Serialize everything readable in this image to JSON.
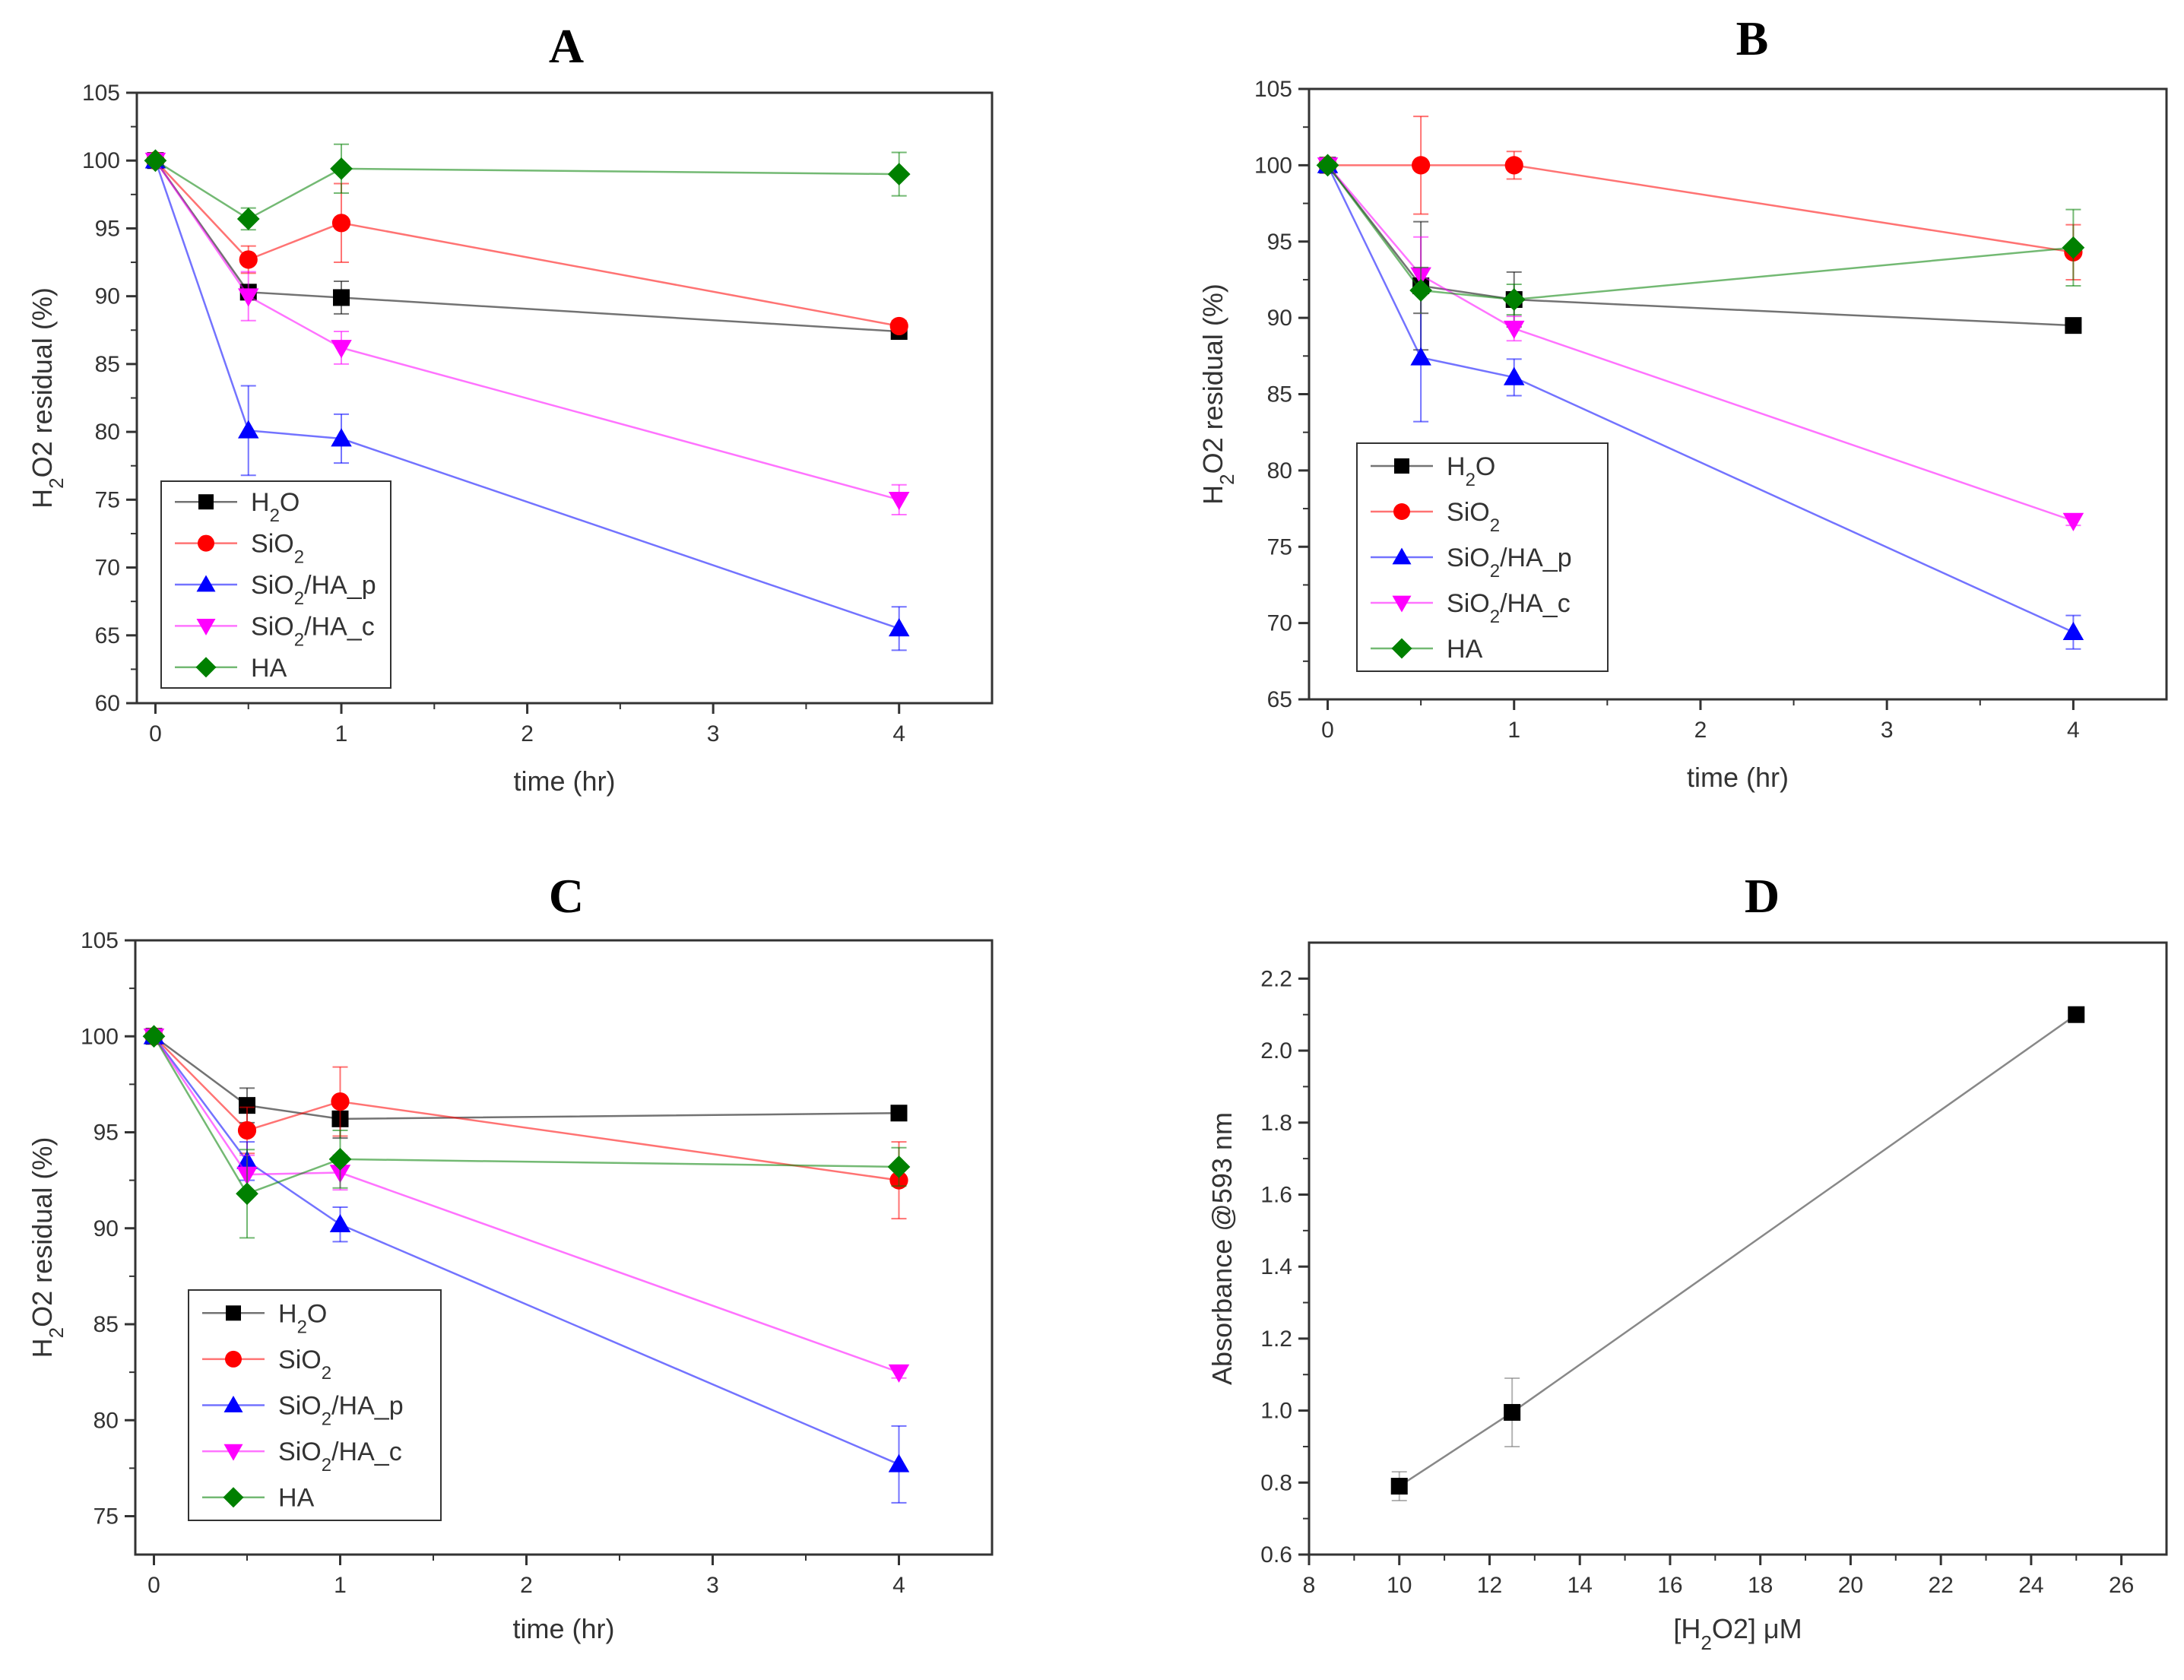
{
  "chart_data": [
    {
      "panel": "A",
      "type": "line",
      "title": "A",
      "xlabel": "time (hr)",
      "ylabel": "H2O2 residual (%)",
      "xlim": [
        -0.1,
        4.5
      ],
      "ylim": [
        60,
        105
      ],
      "xticks": [
        0,
        1,
        2,
        3,
        4
      ],
      "yticks": [
        60,
        65,
        70,
        75,
        80,
        85,
        90,
        95,
        100,
        105
      ],
      "legend_position": "bottom-left",
      "x": [
        0,
        0.5,
        1,
        4
      ],
      "series": [
        {
          "name": "H2O",
          "values": [
            100,
            90.3,
            89.9,
            87.4
          ],
          "errors": [
            0,
            0.5,
            1.2,
            0.3
          ]
        },
        {
          "name": "SiO2",
          "values": [
            100,
            92.7,
            95.4,
            87.8
          ],
          "errors": [
            0,
            1.0,
            2.9,
            0.4
          ]
        },
        {
          "name": "SiO2/HA_p",
          "values": [
            100,
            80.1,
            79.5,
            65.5
          ],
          "errors": [
            0,
            3.3,
            1.8,
            1.6
          ]
        },
        {
          "name": "SiO2/HA_c",
          "values": [
            100,
            90.0,
            86.2,
            75.0
          ],
          "errors": [
            0,
            1.8,
            1.2,
            1.1
          ]
        },
        {
          "name": "HA",
          "values": [
            100,
            95.7,
            99.4,
            99.0
          ],
          "errors": [
            0,
            0.8,
            1.8,
            1.6
          ]
        }
      ]
    },
    {
      "panel": "B",
      "type": "line",
      "title": "B",
      "xlabel": "time (hr)",
      "ylabel": "H2O2 residual (%)",
      "xlim": [
        -0.1,
        4.5
      ],
      "ylim": [
        65,
        105
      ],
      "xticks": [
        0,
        1,
        2,
        3,
        4
      ],
      "yticks": [
        65,
        70,
        75,
        80,
        85,
        90,
        95,
        100,
        105
      ],
      "legend_position": "bottom-left",
      "x": [
        0,
        0.5,
        1,
        4
      ],
      "series": [
        {
          "name": "H2O",
          "values": [
            100,
            92.1,
            91.2,
            89.5
          ],
          "errors": [
            0,
            4.2,
            1.8,
            0.3
          ]
        },
        {
          "name": "SiO2",
          "values": [
            100,
            100,
            100,
            94.3
          ],
          "errors": [
            0,
            3.2,
            0.9,
            1.8
          ]
        },
        {
          "name": "SiO2/HA_p",
          "values": [
            100,
            87.4,
            86.1,
            69.4
          ],
          "errors": [
            0,
            4.2,
            1.2,
            1.1
          ]
        },
        {
          "name": "SiO2/HA_c",
          "values": [
            100,
            92.8,
            89.3,
            76.7
          ],
          "errors": [
            0,
            2.5,
            0.8,
            0.3
          ]
        },
        {
          "name": "HA",
          "values": [
            100,
            91.8,
            91.2,
            94.6
          ],
          "errors": [
            0,
            1.5,
            1.0,
            2.5
          ]
        }
      ]
    },
    {
      "panel": "C",
      "type": "line",
      "title": "C",
      "xlabel": "time (hr)",
      "ylabel": "H2O2 residual (%)",
      "xlim": [
        -0.1,
        4.5
      ],
      "ylim": [
        73,
        105
      ],
      "xticks": [
        0,
        1,
        2,
        3,
        4
      ],
      "yticks": [
        75,
        80,
        85,
        90,
        95,
        100,
        105
      ],
      "legend_position": "bottom-left",
      "x": [
        0,
        0.5,
        1,
        4
      ],
      "series": [
        {
          "name": "H2O",
          "values": [
            100,
            96.4,
            95.7,
            96.0
          ],
          "errors": [
            0,
            0.9,
            1.0,
            0.3
          ]
        },
        {
          "name": "SiO2",
          "values": [
            100,
            95.1,
            96.6,
            92.5
          ],
          "errors": [
            0,
            1.2,
            1.8,
            2.0
          ]
        },
        {
          "name": "SiO2/HA_p",
          "values": [
            100,
            93.5,
            90.2,
            77.7
          ],
          "errors": [
            0,
            1.0,
            0.9,
            2.0
          ]
        },
        {
          "name": "SiO2/HA_c",
          "values": [
            100,
            92.8,
            92.9,
            82.5
          ],
          "errors": [
            0,
            1.0,
            0.9,
            0.3
          ]
        },
        {
          "name": "HA",
          "values": [
            100,
            91.8,
            93.6,
            93.2
          ],
          "errors": [
            0,
            2.3,
            1.5,
            1.0
          ]
        }
      ]
    },
    {
      "panel": "D",
      "type": "line",
      "title": "D",
      "xlabel": "[H2O2] μM",
      "ylabel": "Absorbance @593 nm",
      "xlim": [
        8,
        27
      ],
      "ylim": [
        0.6,
        2.3
      ],
      "xticks": [
        8,
        10,
        12,
        14,
        16,
        18,
        20,
        22,
        24,
        26
      ],
      "yticks": [
        0.6,
        0.8,
        1.0,
        1.2,
        1.4,
        1.6,
        1.8,
        2.0,
        2.2
      ],
      "x": [
        10,
        12.5,
        25
      ],
      "series": [
        {
          "name": "Absorbance",
          "values": [
            0.79,
            0.995,
            2.1
          ],
          "errors": [
            0.04,
            0.095,
            0.01
          ]
        }
      ]
    }
  ],
  "series_colors": {
    "H2O": "#000000",
    "SiO2": "#ff0000",
    "SiO2/HA_p": "#0000ff",
    "SiO2/HA_c": "#ff00ff",
    "HA": "#008000",
    "Absorbance": "#000000"
  },
  "series_markers": {
    "H2O": "square",
    "SiO2": "circle",
    "SiO2/HA_p": "triangle-up",
    "SiO2/HA_c": "triangle-down",
    "HA": "diamond",
    "Absorbance": "square"
  }
}
